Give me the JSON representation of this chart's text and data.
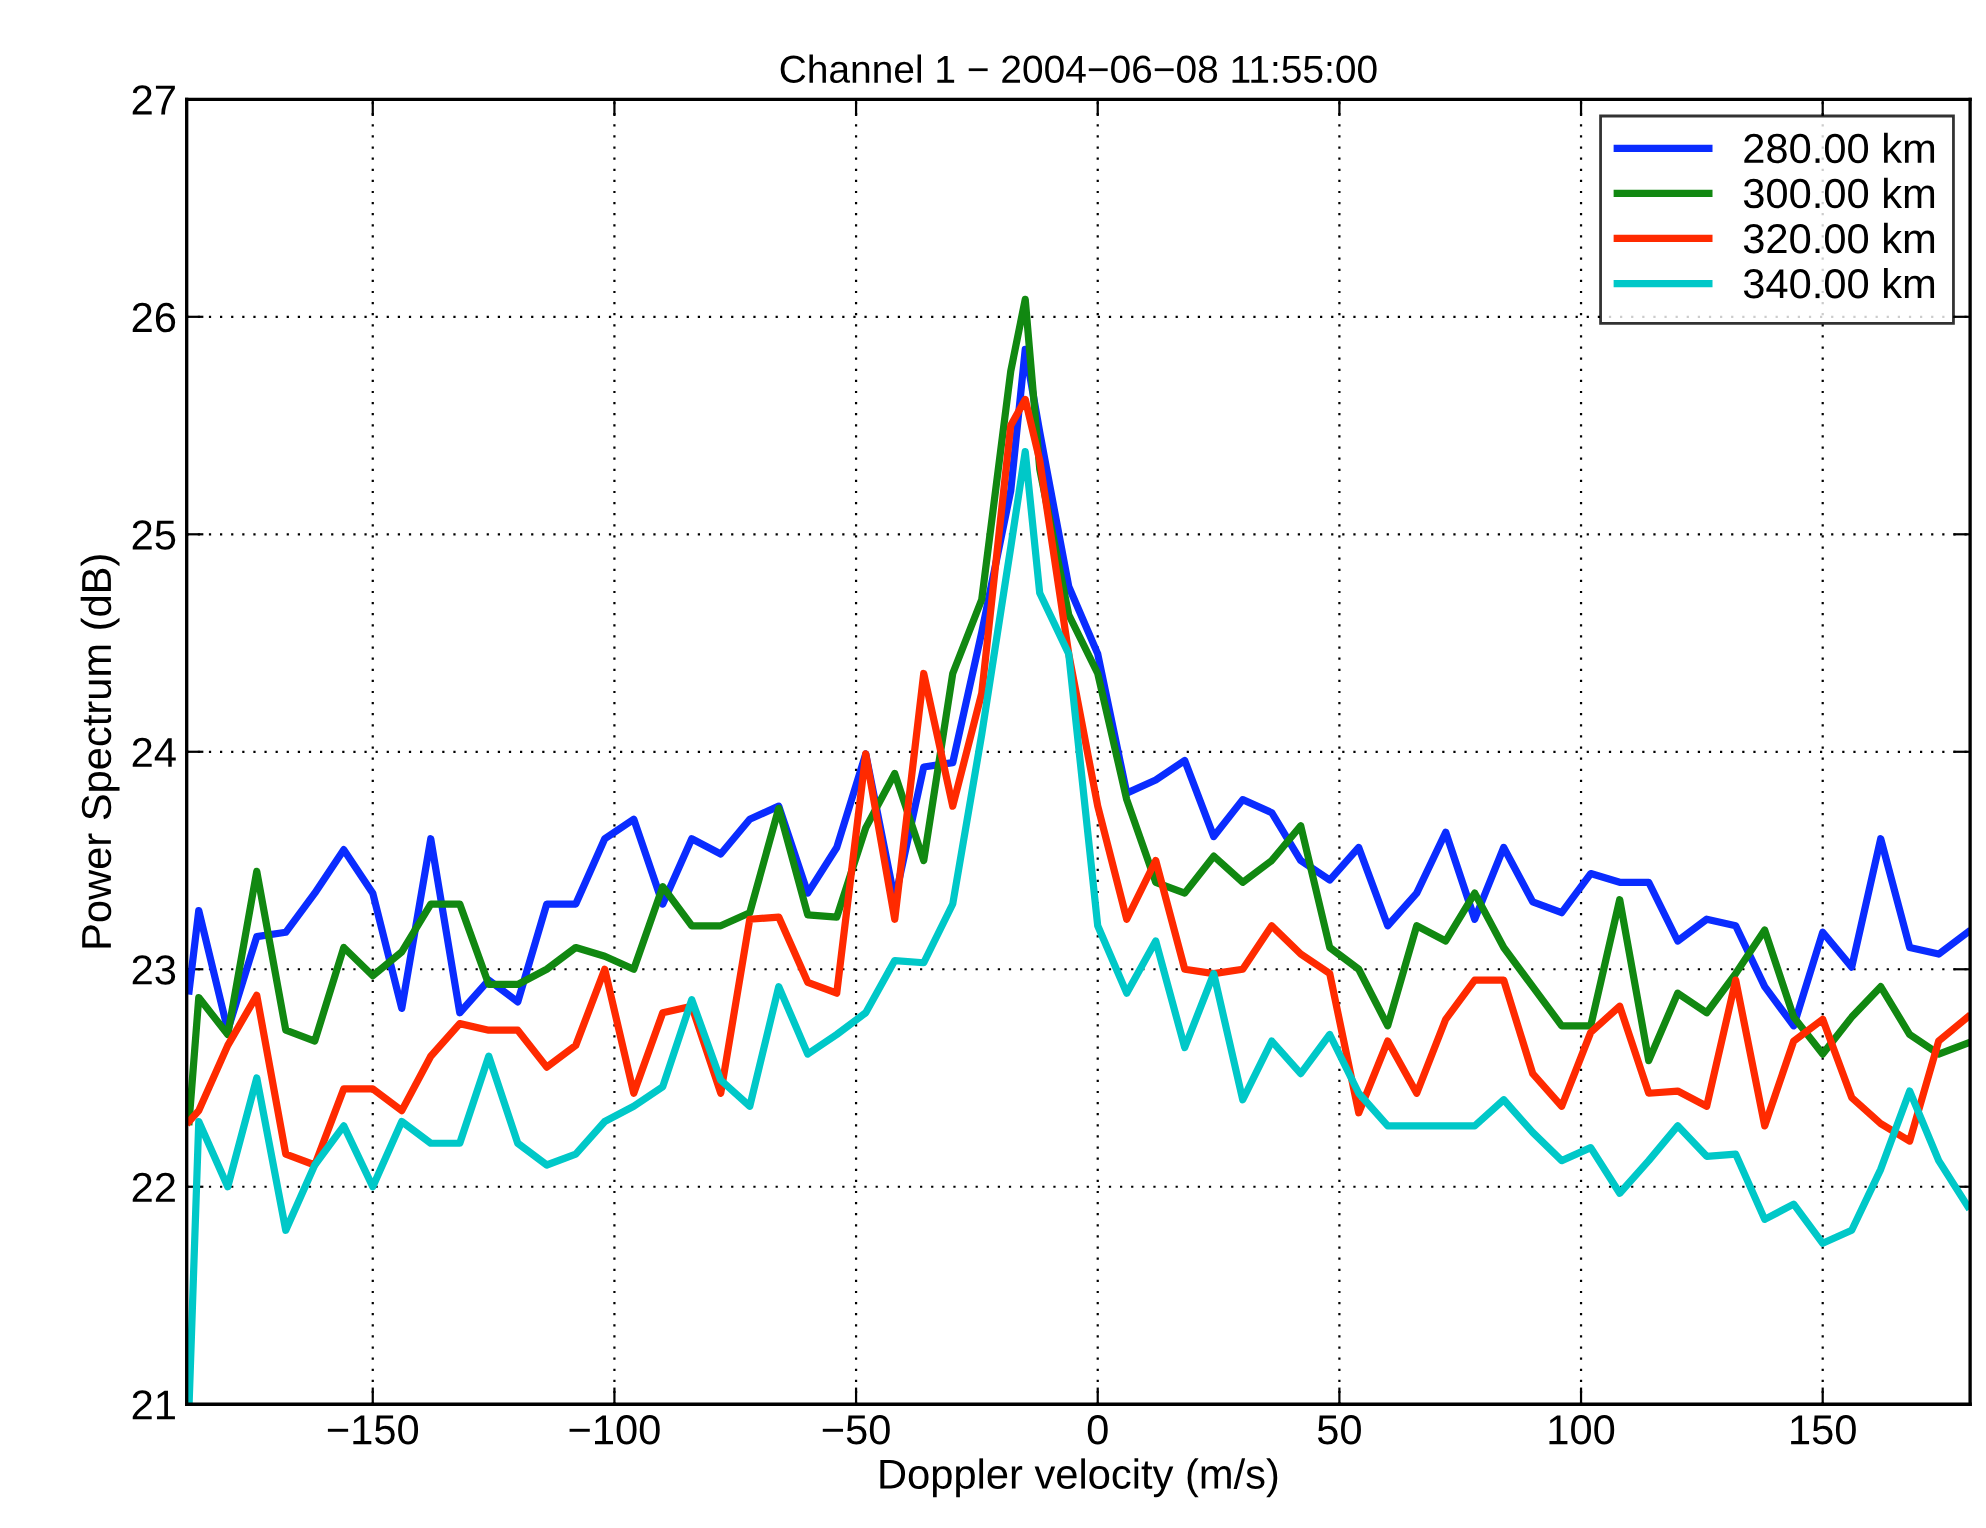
{
  "chart_data": {
    "type": "line",
    "title": "Channel 1 − 2004−06−08 11:55:00",
    "xlabel": "Doppler velocity (m/s)",
    "ylabel": "Power Spectrum (dB)",
    "x": [
      -188,
      -186,
      -180,
      -174,
      -168,
      -162,
      -156,
      -150,
      -144,
      -138,
      -132,
      -126,
      -120,
      -114,
      -108,
      -102,
      -96,
      -90,
      -84,
      -78,
      -72,
      -66,
      -60,
      -54,
      -48,
      -42,
      -36,
      -30,
      -24,
      -18,
      -15,
      -12,
      -6,
      0,
      6,
      12,
      18,
      24,
      30,
      36,
      42,
      48,
      54,
      60,
      66,
      72,
      78,
      84,
      90,
      96,
      102,
      108,
      114,
      120,
      126,
      132,
      138,
      144,
      150,
      156,
      162,
      168,
      174,
      180
    ],
    "series": [
      {
        "name": "280.00 km",
        "color": "#0a2cff",
        "values": [
          22.9,
          23.27,
          22.72,
          23.15,
          23.17,
          23.35,
          23.55,
          23.35,
          22.82,
          23.6,
          22.8,
          22.95,
          22.85,
          23.3,
          23.3,
          23.6,
          23.69,
          23.3,
          23.6,
          23.53,
          23.69,
          23.75,
          23.35,
          23.56,
          23.99,
          23.32,
          23.93,
          23.95,
          24.55,
          25.2,
          25.85,
          25.47,
          24.76,
          24.45,
          23.81,
          23.87,
          23.96,
          23.61,
          23.78,
          23.72,
          23.5,
          23.41,
          23.56,
          23.2,
          23.35,
          23.63,
          23.23,
          23.56,
          23.31,
          23.26,
          23.44,
          23.4,
          23.4,
          23.13,
          23.23,
          23.2,
          22.92,
          22.74,
          23.17,
          23.01,
          23.6,
          23.1,
          23.07,
          23.17
        ]
      },
      {
        "name": "300.00 km",
        "color": "#118811",
        "values": [
          22.3,
          22.87,
          22.7,
          23.45,
          22.72,
          22.67,
          23.1,
          22.97,
          23.08,
          23.3,
          23.3,
          22.93,
          22.93,
          23.0,
          23.1,
          23.06,
          23.0,
          23.38,
          23.2,
          23.2,
          23.26,
          23.74,
          23.25,
          23.24,
          23.65,
          23.9,
          23.5,
          24.36,
          24.7,
          25.75,
          26.08,
          25.3,
          24.63,
          24.36,
          23.78,
          23.4,
          23.35,
          23.52,
          23.4,
          23.5,
          23.66,
          23.1,
          23.0,
          22.74,
          23.2,
          23.13,
          23.35,
          23.1,
          22.92,
          22.74,
          22.74,
          23.32,
          22.58,
          22.89,
          22.8,
          22.98,
          23.18,
          22.78,
          22.61,
          22.78,
          22.92,
          22.7,
          22.61,
          22.66
        ]
      },
      {
        "name": "320.00 km",
        "color": "#ff2a00",
        "values": [
          22.3,
          22.35,
          22.65,
          22.88,
          22.15,
          22.1,
          22.45,
          22.45,
          22.35,
          22.6,
          22.75,
          22.72,
          22.72,
          22.55,
          22.65,
          23.0,
          22.43,
          22.8,
          22.83,
          22.43,
          23.23,
          23.24,
          22.94,
          22.89,
          23.99,
          23.23,
          24.36,
          23.75,
          24.27,
          25.5,
          25.62,
          25.34,
          24.45,
          23.75,
          23.23,
          23.5,
          23.0,
          22.98,
          23.0,
          23.2,
          23.07,
          22.98,
          22.34,
          22.67,
          22.43,
          22.77,
          22.95,
          22.95,
          22.52,
          22.37,
          22.71,
          22.83,
          22.43,
          22.44,
          22.37,
          22.95,
          22.28,
          22.67,
          22.77,
          22.41,
          22.29,
          22.21,
          22.67,
          22.78
        ]
      },
      {
        "name": "340.00 km",
        "color": "#00c8c8",
        "values": [
          21.0,
          22.3,
          22.0,
          22.5,
          21.8,
          22.1,
          22.28,
          22.0,
          22.3,
          22.2,
          22.2,
          22.6,
          22.2,
          22.1,
          22.15,
          22.3,
          22.37,
          22.46,
          22.86,
          22.49,
          22.37,
          22.92,
          22.61,
          22.7,
          22.8,
          23.04,
          23.03,
          23.3,
          24.08,
          24.94,
          25.38,
          24.73,
          24.45,
          23.2,
          22.89,
          23.13,
          22.64,
          22.98,
          22.4,
          22.67,
          22.52,
          22.7,
          22.43,
          22.28,
          22.28,
          22.28,
          22.28,
          22.4,
          22.25,
          22.12,
          22.18,
          21.97,
          22.12,
          22.28,
          22.14,
          22.15,
          21.85,
          21.92,
          21.74,
          21.8,
          22.08,
          22.44,
          22.12,
          21.91
        ]
      }
    ],
    "xlim": [
      -188.5,
      180.5
    ],
    "ylim": [
      21,
      27
    ],
    "xticks": [
      -150,
      -100,
      -50,
      0,
      50,
      100,
      150
    ],
    "yticks": [
      21,
      22,
      23,
      24,
      25,
      26,
      27
    ],
    "grid": true,
    "legend": "top right",
    "line_style": "solid",
    "marker": "none"
  }
}
